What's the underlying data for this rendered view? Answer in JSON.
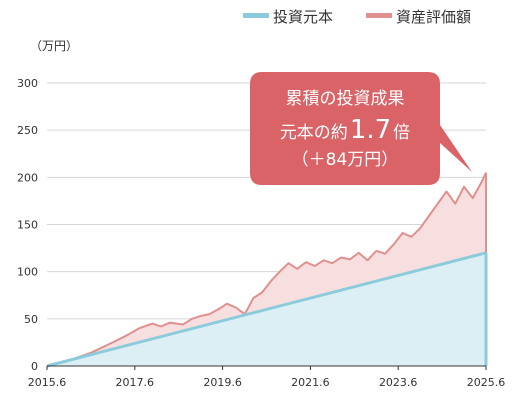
{
  "chart_data": {
    "type": "area",
    "unit_label": "（万円）",
    "x_ticks": [
      "2015.6",
      "2017.6",
      "2019.6",
      "2021.6",
      "2023.6",
      "2025.6"
    ],
    "y_ticks": [
      0,
      50,
      100,
      150,
      200,
      250,
      300
    ],
    "ylim": [
      0,
      300
    ],
    "xlim": [
      2015.5,
      2025.5
    ],
    "grid": true,
    "legend_position": "top-right",
    "series": [
      {
        "name": "投資元本",
        "color": "#8ccbdb",
        "fill": "#dceff5",
        "x": [
          2015.5,
          2025.5
        ],
        "y": [
          0,
          120
        ]
      },
      {
        "name": "資産評価額",
        "color": "#e0908e",
        "fill": "#f7dfdf",
        "x": [
          2015.5,
          2016.0,
          2016.5,
          2017.0,
          2017.3,
          2017.6,
          2017.9,
          2018.1,
          2018.3,
          2018.6,
          2018.8,
          2019.0,
          2019.2,
          2019.4,
          2019.6,
          2019.8,
          2020.0,
          2020.1,
          2020.2,
          2020.4,
          2020.6,
          2020.8,
          2021.0,
          2021.2,
          2021.4,
          2021.6,
          2021.8,
          2022.0,
          2022.2,
          2022.4,
          2022.6,
          2022.8,
          2023.0,
          2023.2,
          2023.4,
          2023.6,
          2023.8,
          2024.0,
          2024.2,
          2024.4,
          2024.6,
          2024.8,
          2025.0,
          2025.2,
          2025.4,
          2025.5
        ],
        "y": [
          0,
          6,
          14,
          25,
          32,
          40,
          45,
          42,
          46,
          44,
          50,
          53,
          55,
          60,
          66,
          62,
          55,
          63,
          72,
          78,
          90,
          100,
          109,
          103,
          110,
          106,
          112,
          109,
          115,
          113,
          120,
          112,
          122,
          119,
          129,
          141,
          137,
          146,
          159,
          172,
          185,
          172,
          190,
          178,
          195,
          205
        ]
      }
    ],
    "callout": {
      "line1": "累積の投資成果",
      "line2_prefix": "元本の約",
      "line2_value": "1.7",
      "line2_suffix": "倍",
      "line3": "（＋84万円）"
    }
  }
}
